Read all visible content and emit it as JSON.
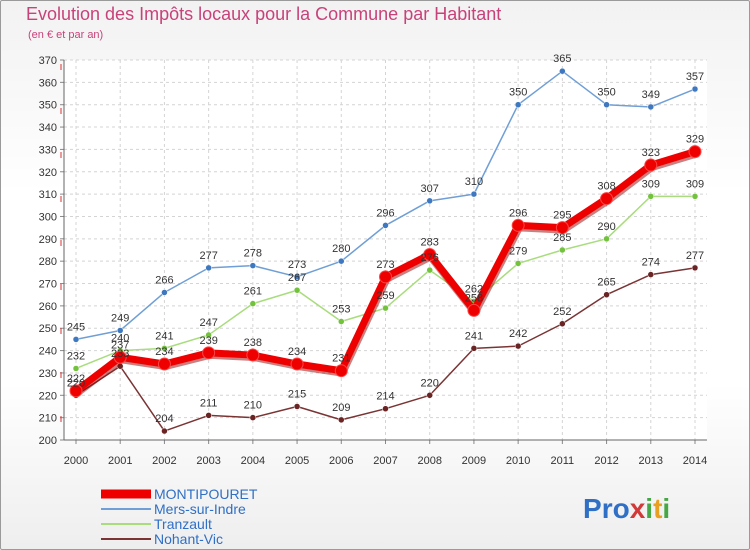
{
  "header": {
    "title": "Evolution des Impôts locaux pour la Commune par Habitant",
    "subtitle": "(en € et par an)"
  },
  "logo": {
    "text": "Proxiti",
    "colors": [
      "#2f6fc6",
      "#e8a020",
      "#45a845",
      "#d23a3a"
    ]
  },
  "chart_data": {
    "type": "line",
    "title": "Evolution des Impôts locaux pour la Commune par Habitant",
    "ylabel": "(en € et par an)",
    "xlabel": "",
    "x": [
      "2000",
      "2001",
      "2002",
      "2003",
      "2004",
      "2005",
      "2006",
      "2007",
      "2008",
      "2009",
      "2010",
      "2011",
      "2012",
      "2013",
      "2014"
    ],
    "ylim": [
      200,
      370
    ],
    "yticks": [
      200,
      210,
      220,
      230,
      240,
      250,
      260,
      270,
      280,
      290,
      300,
      310,
      320,
      330,
      340,
      350,
      360,
      370
    ],
    "grid": true,
    "legend_position": "bottom-left",
    "series": [
      {
        "name": "Mers-sur-Indre",
        "color": "#6f9fd6",
        "marker": "#3d78c0",
        "values": [
          245,
          249,
          266,
          277,
          278,
          273,
          280,
          296,
          307,
          310,
          350,
          365,
          350,
          349,
          357
        ]
      },
      {
        "name": "Tranzault",
        "color": "#a8dc7c",
        "marker": "#72c23c",
        "values": [
          232,
          240,
          241,
          247,
          261,
          267,
          253,
          259,
          276,
          262,
          279,
          285,
          290,
          309,
          309
        ]
      },
      {
        "name": "Nohant-Vic",
        "color": "#7a3434",
        "marker": "#6a2424",
        "values": [
          220,
          233,
          204,
          211,
          210,
          215,
          209,
          214,
          220,
          241,
          242,
          252,
          265,
          274,
          277
        ]
      },
      {
        "name": "MONTIPOURET",
        "color": "#ee0000",
        "marker": "#ee0000",
        "values": [
          222,
          237,
          234,
          239,
          238,
          234,
          231,
          273,
          283,
          258,
          296,
          295,
          308,
          323,
          329
        ]
      }
    ],
    "legend": [
      "MONTIPOURET",
      "Mers-sur-Indre",
      "Tranzault",
      "Nohant-Vic"
    ]
  }
}
